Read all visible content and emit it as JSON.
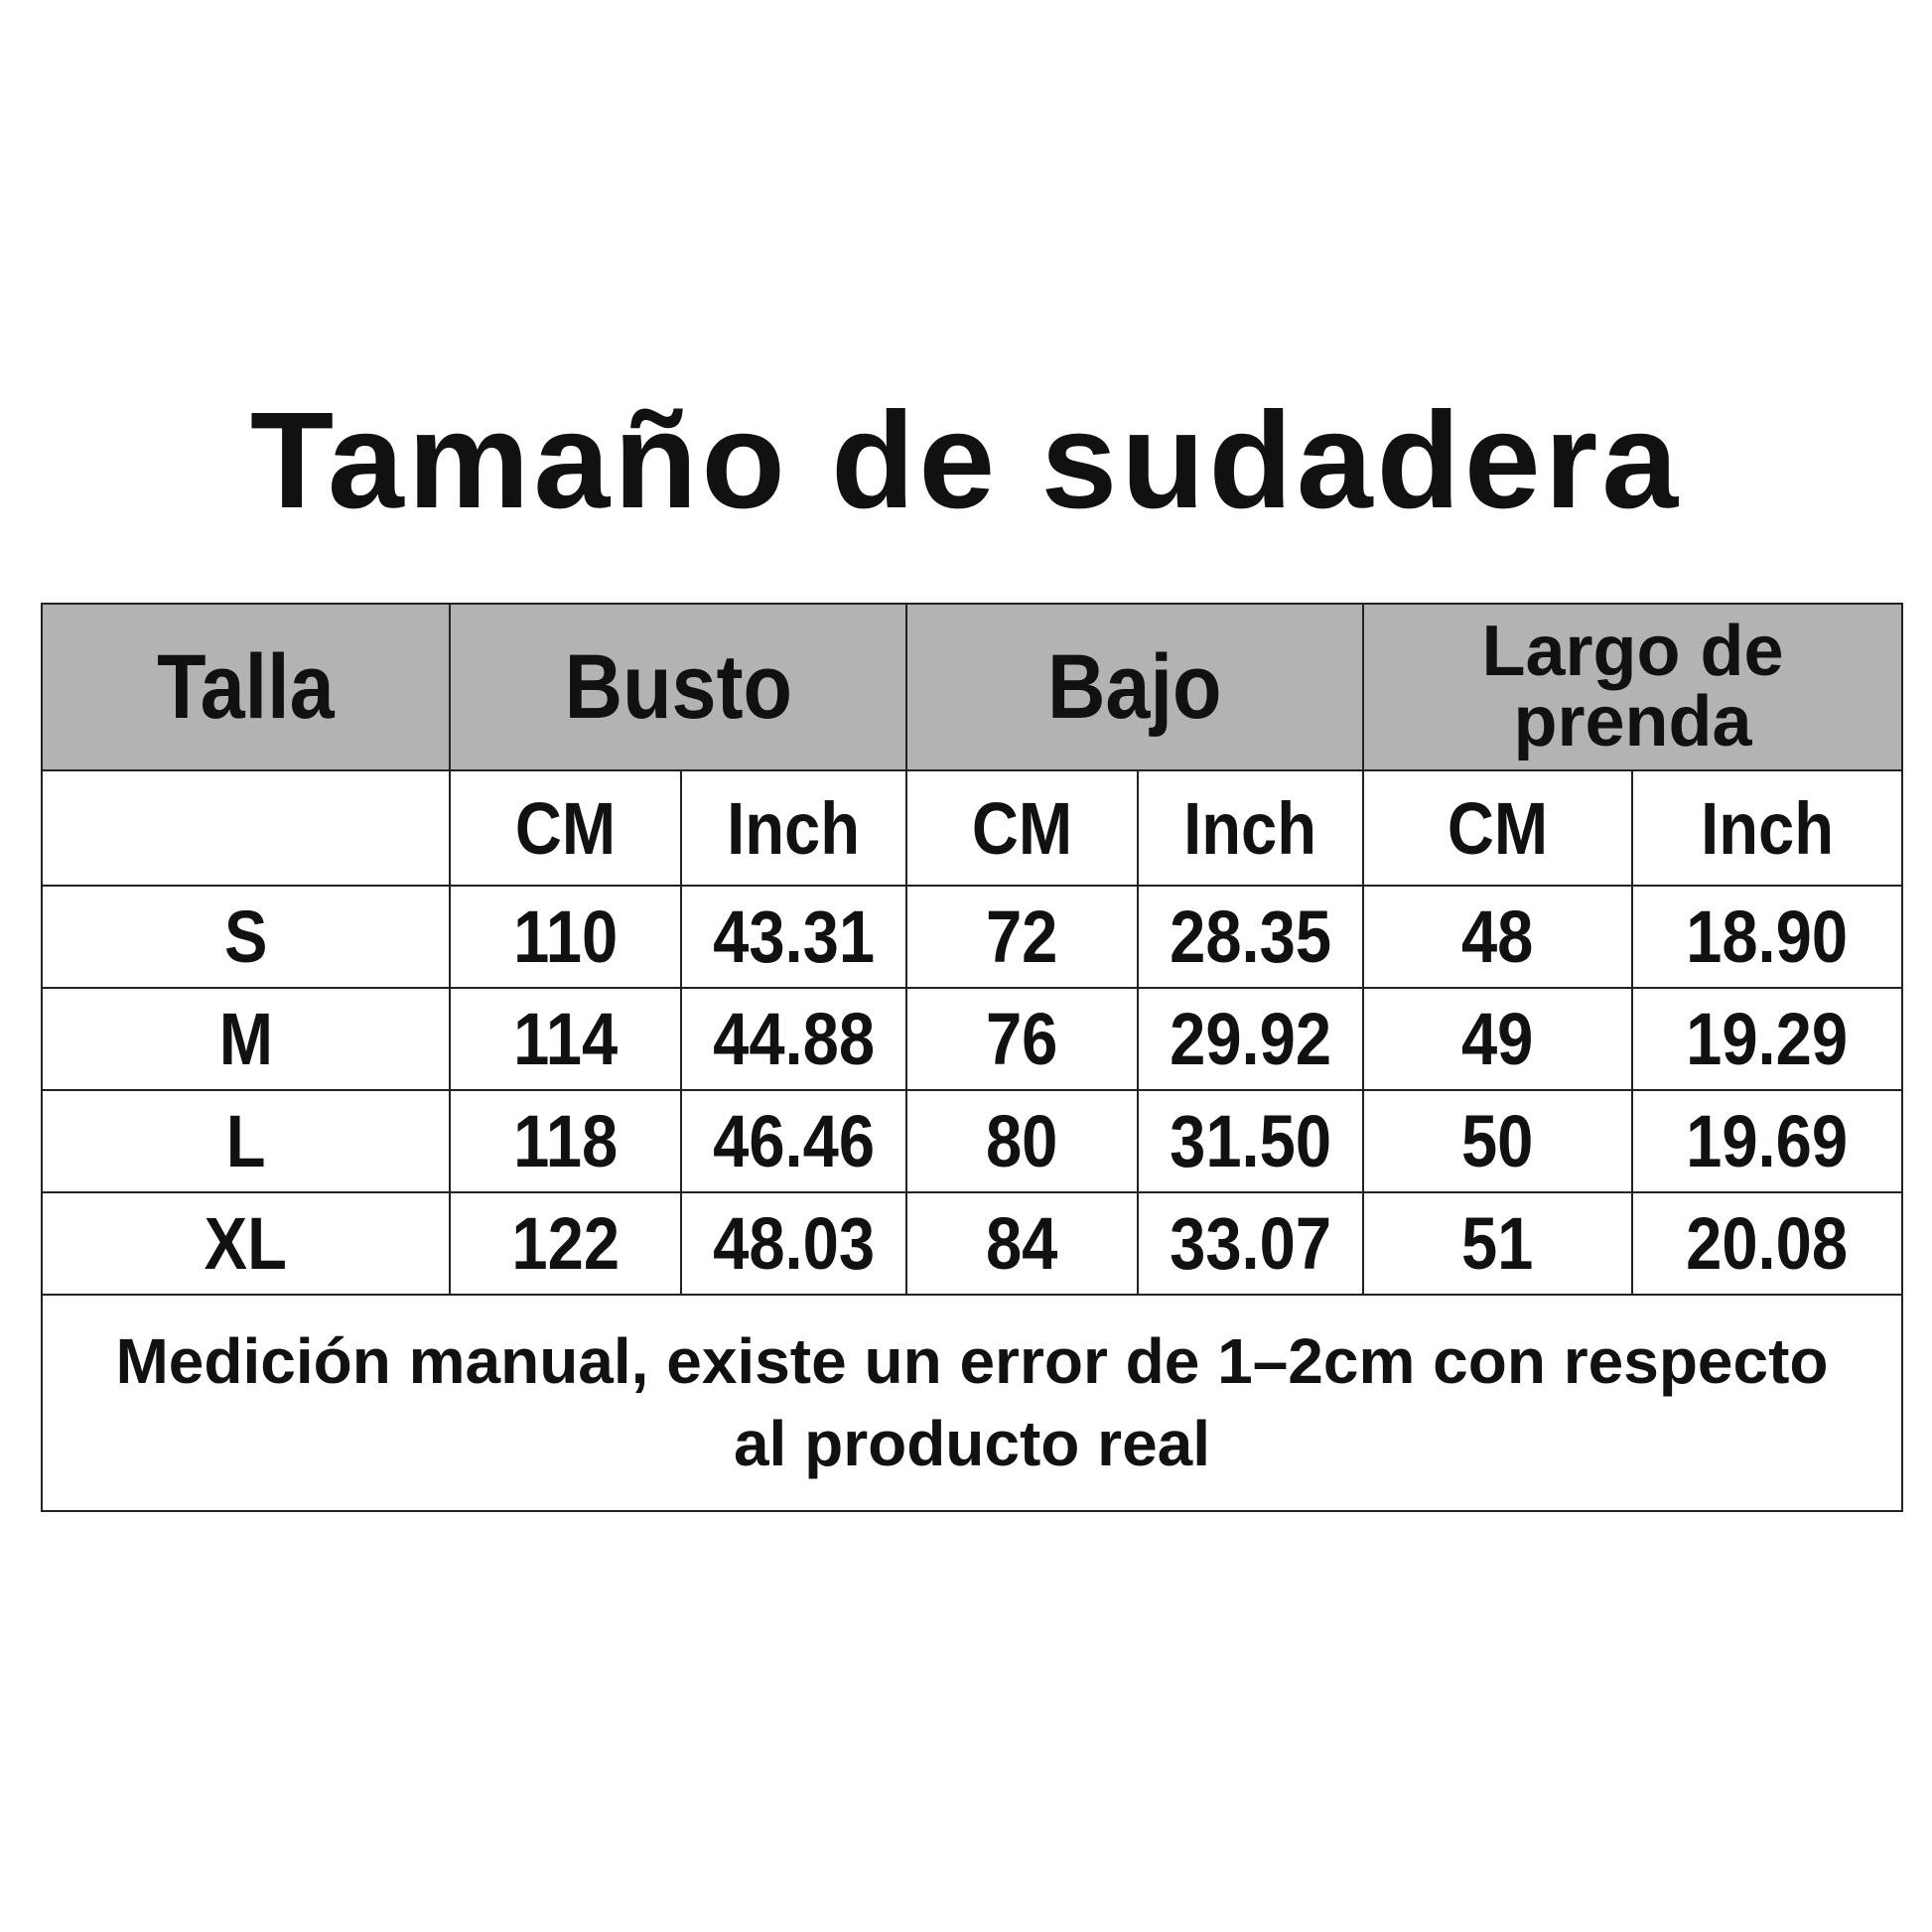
{
  "title": "Tamaño de sudadera",
  "headers": {
    "size": "Talla",
    "bust": "Busto",
    "hem": "Bajo",
    "length": "Largo de prenda"
  },
  "units": [
    "CM",
    "Inch",
    "CM",
    "Inch",
    "CM",
    "Inch"
  ],
  "rows": [
    [
      "S",
      "110",
      "43.31",
      "72",
      "28.35",
      "48",
      "18.90"
    ],
    [
      "M",
      "114",
      "44.88",
      "76",
      "29.92",
      "49",
      "19.29"
    ],
    [
      "L",
      "118",
      "46.46",
      "80",
      "31.50",
      "50",
      "19.69"
    ],
    [
      "XL",
      "122",
      "48.03",
      "84",
      "33.07",
      "51",
      "20.08"
    ]
  ],
  "note": "Medición manual, existe un error de 1–2cm con respecto al producto real",
  "colors": {
    "header_bg": "#b3b3b3",
    "border": "#222222",
    "text": "#111111"
  }
}
